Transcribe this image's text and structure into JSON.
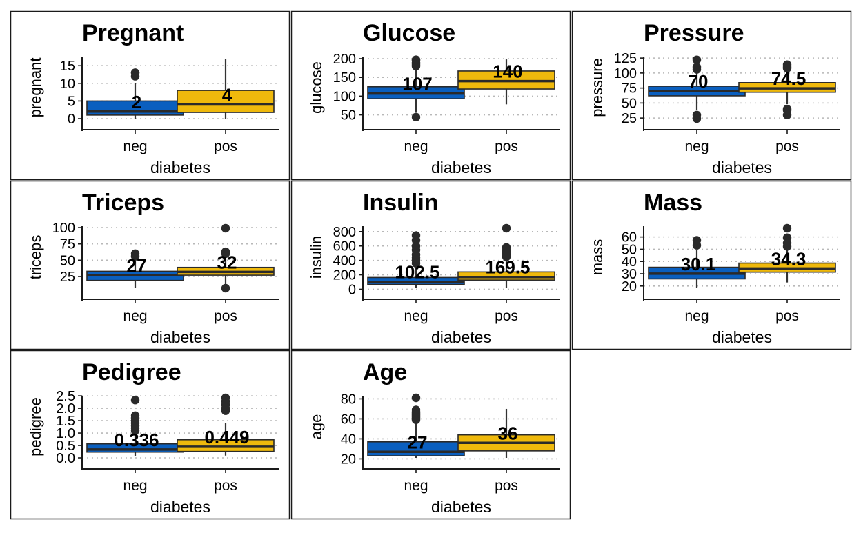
{
  "colors": {
    "neg": "#0a5fbf",
    "pos": "#efb90c",
    "frame": "#1a1a1a",
    "grid": "#b8b8b8",
    "outlier": "#2a2a2a"
  },
  "chart_data": [
    {
      "type": "box",
      "title": "Pregnant",
      "xlabel": "diabetes",
      "ylabel": "pregnant",
      "categories": [
        "neg",
        "pos"
      ],
      "ylim": [
        0,
        17
      ],
      "yticks": [
        0,
        5,
        10,
        15
      ],
      "grid": true,
      "boxes": [
        {
          "category": "neg",
          "lower_whisker": 0,
          "q1": 1,
          "median": 2,
          "q3": 5,
          "upper_whisker": 10,
          "outliers": [
            12,
            13,
            13
          ],
          "label": "2"
        },
        {
          "category": "pos",
          "lower_whisker": 0,
          "q1": 1.75,
          "median": 4,
          "q3": 8,
          "upper_whisker": 17,
          "outliers": [],
          "label": "4"
        }
      ]
    },
    {
      "type": "box",
      "title": "Glucose",
      "xlabel": "diabetes",
      "ylabel": "glucose",
      "categories": [
        "neg",
        "pos"
      ],
      "ylim": [
        40,
        200
      ],
      "yticks": [
        50,
        100,
        150,
        200
      ],
      "grid": true,
      "boxes": [
        {
          "category": "neg",
          "lower_whisker": 56,
          "q1": 93,
          "median": 107,
          "q3": 125,
          "upper_whisker": 173,
          "outliers": [
            44,
            180,
            183,
            187,
            189,
            196,
            197
          ],
          "label": "107"
        },
        {
          "category": "pos",
          "lower_whisker": 78,
          "q1": 119,
          "median": 140,
          "q3": 167,
          "upper_whisker": 198,
          "outliers": [],
          "label": "140"
        }
      ]
    },
    {
      "type": "box",
      "title": "Pressure",
      "xlabel": "diabetes",
      "ylabel": "pressure",
      "categories": [
        "neg",
        "pos"
      ],
      "ylim": [
        24,
        124
      ],
      "yticks": [
        25,
        50,
        75,
        100,
        125
      ],
      "grid": true,
      "boxes": [
        {
          "category": "neg",
          "lower_whisker": 38,
          "q1": 62,
          "median": 70,
          "q3": 78,
          "upper_whisker": 100,
          "outliers": [
            24,
            30,
            106,
            110,
            122
          ],
          "label": "70"
        },
        {
          "category": "pos",
          "lower_whisker": 48,
          "q1": 68,
          "median": 74.5,
          "q3": 84,
          "upper_whisker": 104,
          "outliers": [
            30,
            38,
            40,
            108,
            110,
            114
          ],
          "label": "74.5"
        }
      ]
    },
    {
      "type": "box",
      "title": "Triceps",
      "xlabel": "diabetes",
      "ylabel": "triceps",
      "categories": [
        "neg",
        "pos"
      ],
      "ylim": [
        7,
        99
      ],
      "yticks": [
        25,
        50,
        75,
        100
      ],
      "grid": true,
      "boxes": [
        {
          "category": "neg",
          "lower_whisker": 7,
          "q1": 19,
          "median": 27,
          "q3": 33,
          "upper_whisker": 54,
          "outliers": [
            56,
            60
          ],
          "label": "27"
        },
        {
          "category": "pos",
          "lower_whisker": 13,
          "q1": 27,
          "median": 32,
          "q3": 39,
          "upper_whisker": 52,
          "outliers": [
            7,
            60,
            63,
            99
          ],
          "label": "32"
        }
      ]
    },
    {
      "type": "box",
      "title": "Insulin",
      "xlabel": "diabetes",
      "ylabel": "insulin",
      "categories": [
        "neg",
        "pos"
      ],
      "ylim": [
        14,
        846
      ],
      "yticks": [
        0,
        200,
        400,
        600,
        800
      ],
      "grid": true,
      "boxes": [
        {
          "category": "neg",
          "lower_whisker": 15,
          "q1": 66,
          "median": 102.5,
          "q3": 163,
          "upper_whisker": 320,
          "outliers": [
            360,
            400,
            440,
            480,
            545,
            600,
            680,
            745
          ],
          "label": "102.5"
        },
        {
          "category": "pos",
          "lower_whisker": 14,
          "q1": 127,
          "median": 169.5,
          "q3": 240,
          "upper_whisker": 400,
          "outliers": [
            450,
            480,
            495,
            510,
            540,
            580,
            846
          ],
          "label": "169.5"
        }
      ]
    },
    {
      "type": "box",
      "title": "Mass",
      "xlabel": "diabetes",
      "ylabel": "mass",
      "categories": [
        "neg",
        "pos"
      ],
      "ylim": [
        18.2,
        67.1
      ],
      "yticks": [
        20,
        30,
        40,
        50,
        60
      ],
      "grid": true,
      "boxes": [
        {
          "category": "neg",
          "lower_whisker": 18.2,
          "q1": 25.8,
          "median": 30.1,
          "q3": 35.3,
          "upper_whisker": 49.6,
          "outliers": [
            53.2,
            57.3
          ],
          "label": "30.1"
        },
        {
          "category": "pos",
          "lower_whisker": 22.9,
          "q1": 31.3,
          "median": 34.3,
          "q3": 38.7,
          "upper_whisker": 49.7,
          "outliers": [
            52.3,
            55,
            59.4,
            67.1
          ],
          "label": "34.3"
        }
      ]
    },
    {
      "type": "box",
      "title": "Pedigree",
      "xlabel": "diabetes",
      "ylabel": "pedigree",
      "categories": [
        "neg",
        "pos"
      ],
      "ylim": [
        0,
        2.42
      ],
      "yticks": [
        0,
        0.5,
        1,
        1.5,
        2,
        2.5
      ],
      "ytick_labels": [
        "0.0",
        "0.5",
        "1.0",
        "1.5",
        "2.0",
        "2.5"
      ],
      "grid": true,
      "boxes": [
        {
          "category": "neg",
          "lower_whisker": 0.08,
          "q1": 0.23,
          "median": 0.336,
          "q3": 0.565,
          "upper_whisker": 1.05,
          "outliers": [
            1.1,
            1.2,
            1.3,
            1.4,
            1.5,
            1.6,
            1.7,
            2.33
          ],
          "label": "0.336"
        },
        {
          "category": "pos",
          "lower_whisker": 0.09,
          "q1": 0.26,
          "median": 0.449,
          "q3": 0.73,
          "upper_whisker": 1.4,
          "outliers": [
            1.9,
            2.0,
            2.14,
            2.28,
            2.42
          ],
          "label": "0.449"
        }
      ]
    },
    {
      "type": "box",
      "title": "Age",
      "xlabel": "diabetes",
      "ylabel": "age",
      "categories": [
        "neg",
        "pos"
      ],
      "ylim": [
        21,
        81
      ],
      "yticks": [
        20,
        40,
        60,
        80
      ],
      "grid": true,
      "boxes": [
        {
          "category": "neg",
          "lower_whisker": 21,
          "q1": 23,
          "median": 27,
          "q3": 37,
          "upper_whisker": 58,
          "outliers": [
            59,
            60,
            61,
            62,
            63,
            64,
            65,
            66,
            67,
            69,
            81
          ],
          "label": "27"
        },
        {
          "category": "pos",
          "lower_whisker": 21,
          "q1": 28,
          "median": 36,
          "q3": 44,
          "upper_whisker": 70,
          "outliers": [],
          "label": "36"
        }
      ]
    }
  ]
}
